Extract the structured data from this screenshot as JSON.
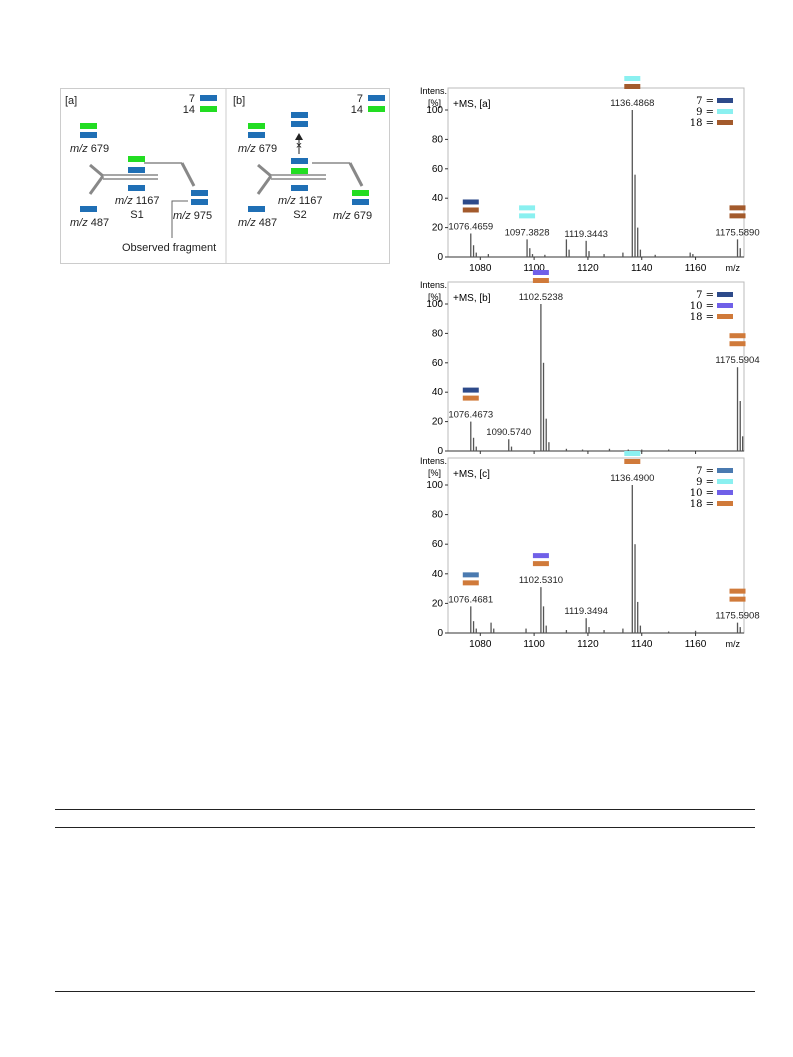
{
  "colors": {
    "scheme_a": {
      "7": "#1f6fb5",
      "14": "#22dd22"
    },
    "spec": {
      "7": "#2d4a8a",
      "9": "#8af0f0",
      "10": "#7060e8",
      "18a": "#a35a2c",
      "18b": "#d07a3a",
      "7c": "#4a7ab0"
    }
  },
  "scheme": {
    "panels": [
      {
        "tag": "[a]",
        "legend": [
          {
            "label": "7",
            "color_key": "7"
          },
          {
            "label": "14",
            "color_key": "14"
          }
        ],
        "labels": {
          "frag1": "m/z 679",
          "frag2": "m/z 487",
          "mid": "m/z 1167",
          "species": "S1",
          "right": "m/z 975",
          "note": "Observed fragment"
        }
      },
      {
        "tag": "[b]",
        "legend": [
          {
            "label": "7",
            "color_key": "7"
          },
          {
            "label": "14",
            "color_key": "14"
          }
        ],
        "labels": {
          "frag1": "m/z 679",
          "frag2": "m/z 487",
          "mid": "m/z 1167",
          "species": "S2",
          "right": "m/z 679"
        }
      }
    ]
  },
  "chart_data": [
    {
      "type": "bar",
      "subtype": "mass-spectrum",
      "ylabel": "Intens. [%]",
      "xlabel": "m/z",
      "title": "+MS, [a]",
      "xlim": [
        1068,
        1178
      ],
      "ylim": [
        0,
        105
      ],
      "xticks": [
        1080,
        1100,
        1120,
        1140,
        1160
      ],
      "yticks": [
        0,
        20,
        40,
        60,
        80,
        100
      ],
      "legend": [
        {
          "label": "7 =",
          "color": "#2d4a8a"
        },
        {
          "label": "9 =",
          "color": "#8af0f0"
        },
        {
          "label": "18 =",
          "color": "#a35a2c"
        }
      ],
      "peaks": [
        {
          "x": 1076.4659,
          "y": 16,
          "label": "1076.4659"
        },
        {
          "x": 1077.5,
          "y": 8
        },
        {
          "x": 1078.5,
          "y": 3
        },
        {
          "x": 1083,
          "y": 2
        },
        {
          "x": 1097.3828,
          "y": 12,
          "label": "1097.3828"
        },
        {
          "x": 1098.4,
          "y": 6
        },
        {
          "x": 1099.4,
          "y": 2
        },
        {
          "x": 1104,
          "y": 1.5
        },
        {
          "x": 1112,
          "y": 12
        },
        {
          "x": 1113,
          "y": 5
        },
        {
          "x": 1119.3443,
          "y": 11,
          "label": "1119.3443"
        },
        {
          "x": 1120.4,
          "y": 4
        },
        {
          "x": 1126,
          "y": 2
        },
        {
          "x": 1133,
          "y": 3
        },
        {
          "x": 1136.4868,
          "y": 100,
          "label": "1136.4868"
        },
        {
          "x": 1137.5,
          "y": 56
        },
        {
          "x": 1138.5,
          "y": 20
        },
        {
          "x": 1139.5,
          "y": 5
        },
        {
          "x": 1145,
          "y": 1.5
        },
        {
          "x": 1158,
          "y": 3
        },
        {
          "x": 1159,
          "y": 2
        },
        {
          "x": 1175.589,
          "y": 12,
          "label": "1175.5890"
        },
        {
          "x": 1176.6,
          "y": 6
        }
      ],
      "markers": [
        {
          "x": 1076.4659,
          "colors": [
            "#2d4a8a",
            "#a35a2c"
          ]
        },
        {
          "x": 1097.3828,
          "colors": [
            "#8af0f0",
            "#8af0f0"
          ]
        },
        {
          "x": 1136.4868,
          "colors": [
            "#8af0f0",
            "#a35a2c"
          ]
        },
        {
          "x": 1175.589,
          "colors": [
            "#a35a2c",
            "#a35a2c"
          ]
        }
      ]
    },
    {
      "type": "bar",
      "subtype": "mass-spectrum",
      "ylabel": "Intens. [%]",
      "xlabel": "",
      "title": "+MS, [b]",
      "xlim": [
        1068,
        1178
      ],
      "ylim": [
        0,
        105
      ],
      "xticks": [
        1080,
        1100,
        1120,
        1140,
        1160
      ],
      "yticks": [
        0,
        20,
        40,
        60,
        80,
        100
      ],
      "legend": [
        {
          "label": "7 =",
          "color": "#2d4a8a"
        },
        {
          "label": "10 =",
          "color": "#7060e8"
        },
        {
          "label": "18 =",
          "color": "#d07a3a"
        }
      ],
      "peaks": [
        {
          "x": 1076.4673,
          "y": 20,
          "label": "1076.4673"
        },
        {
          "x": 1077.5,
          "y": 9
        },
        {
          "x": 1078.5,
          "y": 3
        },
        {
          "x": 1090.574,
          "y": 8,
          "label": "1090.5740"
        },
        {
          "x": 1091.6,
          "y": 3
        },
        {
          "x": 1102.5238,
          "y": 100,
          "label": "1102.5238"
        },
        {
          "x": 1103.5,
          "y": 60
        },
        {
          "x": 1104.5,
          "y": 22
        },
        {
          "x": 1105.5,
          "y": 6
        },
        {
          "x": 1112,
          "y": 1.5
        },
        {
          "x": 1118,
          "y": 1
        },
        {
          "x": 1128,
          "y": 1.5
        },
        {
          "x": 1135,
          "y": 1
        },
        {
          "x": 1140,
          "y": 1
        },
        {
          "x": 1150,
          "y": 1
        },
        {
          "x": 1175.5904,
          "y": 57,
          "label": "1175.5904"
        },
        {
          "x": 1176.6,
          "y": 34
        },
        {
          "x": 1177.5,
          "y": 10
        }
      ],
      "markers": [
        {
          "x": 1076.4673,
          "colors": [
            "#2d4a8a",
            "#d07a3a"
          ]
        },
        {
          "x": 1102.5238,
          "colors": [
            "#7060e8",
            "#d07a3a"
          ]
        },
        {
          "x": 1175.5904,
          "colors": [
            "#d07a3a",
            "#d07a3a"
          ]
        }
      ]
    },
    {
      "type": "bar",
      "subtype": "mass-spectrum",
      "ylabel": "Intens. [%]",
      "xlabel": "m/z",
      "title": "+MS, [c]",
      "xlim": [
        1068,
        1178
      ],
      "ylim": [
        0,
        105
      ],
      "xticks": [
        1080,
        1100,
        1120,
        1140,
        1160
      ],
      "yticks": [
        0,
        20,
        40,
        60,
        80,
        100
      ],
      "legend": [
        {
          "label": "7 =",
          "color": "#4a7ab0"
        },
        {
          "label": "9 =",
          "color": "#8af0f0"
        },
        {
          "label": "10 =",
          "color": "#7060e8"
        },
        {
          "label": "18 =",
          "color": "#d07a3a"
        }
      ],
      "peaks": [
        {
          "x": 1076.4681,
          "y": 18,
          "label": "1076.4681"
        },
        {
          "x": 1077.5,
          "y": 8
        },
        {
          "x": 1078.5,
          "y": 3
        },
        {
          "x": 1084,
          "y": 7
        },
        {
          "x": 1085,
          "y": 3
        },
        {
          "x": 1097,
          "y": 3
        },
        {
          "x": 1102.531,
          "y": 31,
          "label": "1102.5310"
        },
        {
          "x": 1103.5,
          "y": 18
        },
        {
          "x": 1104.5,
          "y": 5
        },
        {
          "x": 1112,
          "y": 2
        },
        {
          "x": 1119.3494,
          "y": 10,
          "label": "1119.3494"
        },
        {
          "x": 1120.4,
          "y": 4
        },
        {
          "x": 1126,
          "y": 2
        },
        {
          "x": 1133,
          "y": 3
        },
        {
          "x": 1136.49,
          "y": 100,
          "label": "1136.4900"
        },
        {
          "x": 1137.5,
          "y": 60
        },
        {
          "x": 1138.5,
          "y": 21
        },
        {
          "x": 1139.5,
          "y": 5
        },
        {
          "x": 1150,
          "y": 1
        },
        {
          "x": 1160,
          "y": 1.5
        },
        {
          "x": 1175.5908,
          "y": 7,
          "label": "1175.5908"
        },
        {
          "x": 1176.6,
          "y": 4
        }
      ],
      "markers": [
        {
          "x": 1076.4681,
          "colors": [
            "#4a7ab0",
            "#d07a3a"
          ]
        },
        {
          "x": 1102.531,
          "colors": [
            "#7060e8",
            "#d07a3a"
          ]
        },
        {
          "x": 1136.49,
          "colors": [
            "#8af0f0",
            "#d07a3a"
          ]
        },
        {
          "x": 1175.5908,
          "colors": [
            "#d07a3a",
            "#d07a3a"
          ]
        }
      ]
    }
  ]
}
